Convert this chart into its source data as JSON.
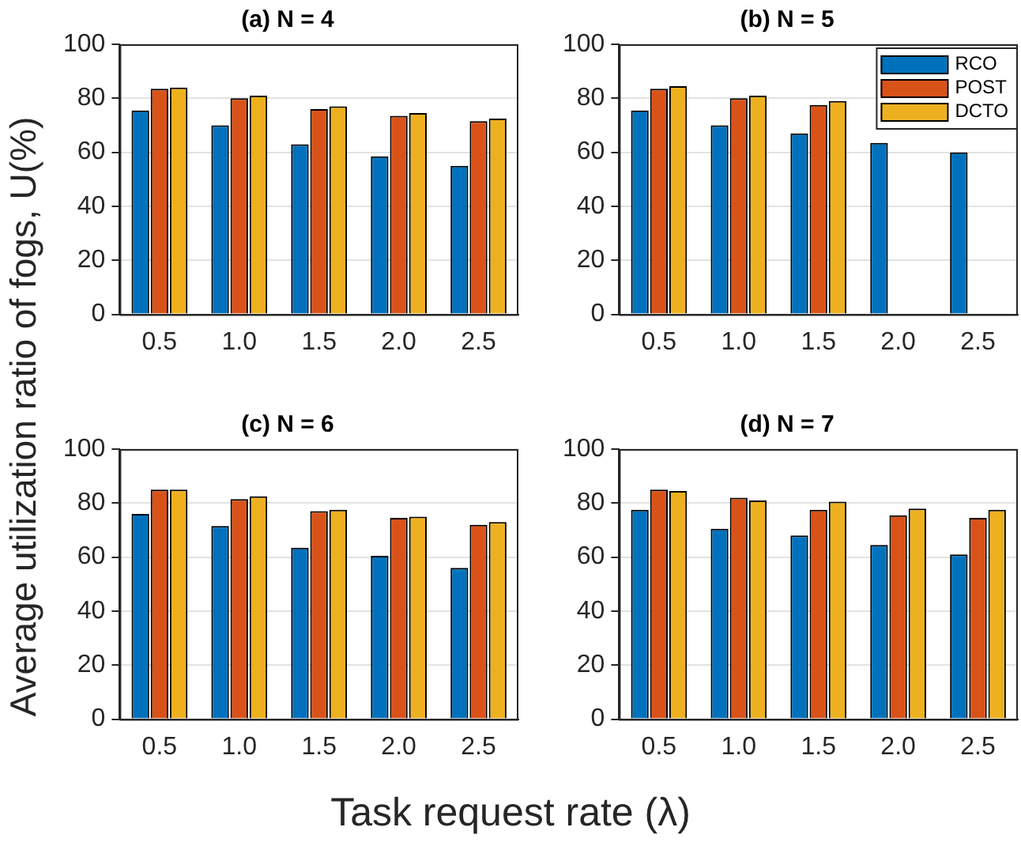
{
  "chart_data": [
    {
      "type": "bar",
      "title": "(a) N = 4",
      "ylabel": "Average utilization ratio of fogs, U(%)",
      "categories": [
        "0.5",
        "1.0",
        "1.5",
        "2.0",
        "2.5"
      ],
      "ylim": [
        0,
        100
      ],
      "yticks": [
        0,
        20,
        40,
        60,
        80,
        100
      ],
      "grid": "y",
      "legend": false,
      "series": [
        {
          "color": "#0072bd",
          "values": [
            75.5,
            70,
            63,
            58.5,
            55
          ]
        },
        {
          "color": "#d95319",
          "values": [
            83.5,
            80,
            76,
            73.5,
            71.5
          ]
        },
        {
          "color": "#edb120",
          "values": [
            84,
            81,
            77,
            74.5,
            72.5
          ]
        }
      ]
    },
    {
      "type": "bar",
      "title": "(b) N = 5",
      "categories": [
        "0.5",
        "1.0",
        "1.5",
        "2.0",
        "2.5"
      ],
      "ylim": [
        0,
        100
      ],
      "yticks": [
        0,
        20,
        40,
        60,
        80,
        100
      ],
      "grid": "y",
      "legend": "top right",
      "series": [
        {
          "name": "RCO",
          "color": "#0072bd",
          "values": [
            75.5,
            70,
            67,
            63.5,
            60
          ]
        },
        {
          "name": "POST",
          "color": "#d95319",
          "values": [
            83.5,
            80,
            77.5,
            null,
            null
          ]
        },
        {
          "name": "DCTO",
          "color": "#edb120",
          "values": [
            84.5,
            81,
            79,
            null,
            null
          ]
        }
      ]
    },
    {
      "type": "bar",
      "title": "(c) N = 6",
      "xlabel": "Task request rate (λ)",
      "categories": [
        "0.5",
        "1.0",
        "1.5",
        "2.0",
        "2.5"
      ],
      "ylim": [
        0,
        100
      ],
      "yticks": [
        0,
        20,
        40,
        60,
        80,
        100
      ],
      "grid": "y",
      "legend": false,
      "series": [
        {
          "color": "#0072bd",
          "values": [
            76,
            71.5,
            63.5,
            60.5,
            56
          ]
        },
        {
          "color": "#d95319",
          "values": [
            85,
            81.5,
            77,
            74.5,
            72
          ]
        },
        {
          "color": "#edb120",
          "values": [
            85,
            82.5,
            77.5,
            75,
            73
          ]
        }
      ]
    },
    {
      "type": "bar",
      "title": "(d) N = 7",
      "categories": [
        "0.5",
        "1.0",
        "1.5",
        "2.0",
        "2.5"
      ],
      "ylim": [
        0,
        100
      ],
      "yticks": [
        0,
        20,
        40,
        60,
        80,
        100
      ],
      "grid": "y",
      "legend": false,
      "series": [
        {
          "color": "#0072bd",
          "values": [
            77.5,
            70.5,
            68,
            64.5,
            61
          ]
        },
        {
          "color": "#d95319",
          "values": [
            85,
            82,
            77.5,
            75.5,
            74.5
          ]
        },
        {
          "color": "#edb120",
          "values": [
            84.5,
            81,
            80.5,
            78,
            77.5
          ]
        }
      ]
    }
  ]
}
